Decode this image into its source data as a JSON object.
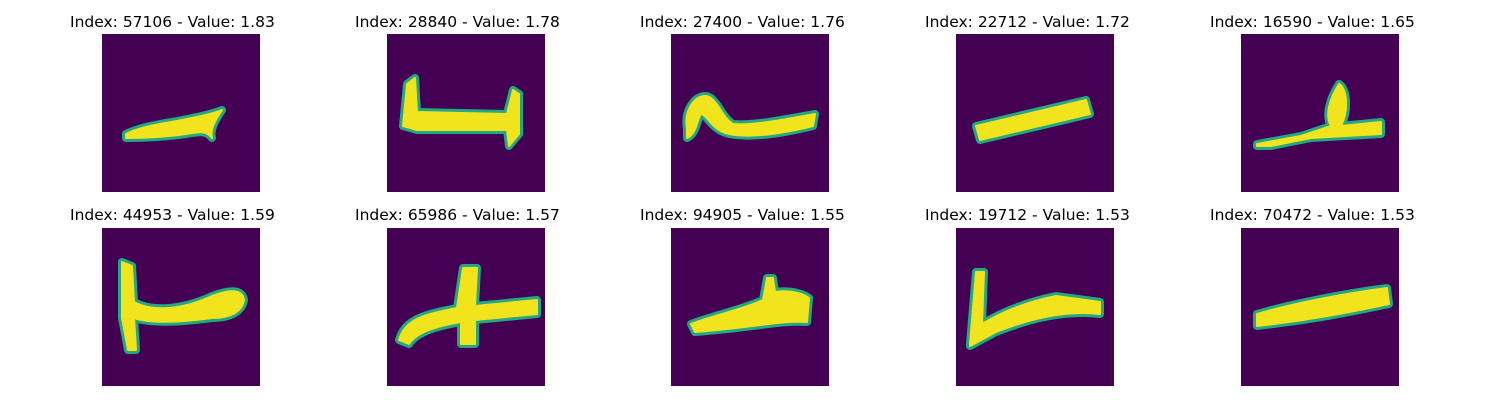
{
  "panels": [
    {
      "title": "Index: 57106 - Value: 1.83",
      "glyph": "glyph-1"
    },
    {
      "title": "Index: 28840 - Value: 1.78",
      "glyph": "glyph-2"
    },
    {
      "title": "Index: 27400 - Value: 1.76",
      "glyph": "glyph-3"
    },
    {
      "title": "Index: 22712 - Value: 1.72",
      "glyph": "glyph-4"
    },
    {
      "title": "Index: 16590 - Value: 1.65",
      "glyph": "glyph-5"
    },
    {
      "title": "Index: 44953 - Value: 1.59",
      "glyph": "glyph-6"
    },
    {
      "title": "Index: 65986 - Value: 1.57",
      "glyph": "glyph-7"
    },
    {
      "title": "Index: 94905 - Value: 1.55",
      "glyph": "glyph-8"
    },
    {
      "title": "Index: 19712 - Value: 1.53",
      "glyph": "glyph-9"
    },
    {
      "title": "Index: 70472 - Value: 1.53",
      "glyph": "glyph-10"
    }
  ],
  "colors": {
    "background": "#440154",
    "stroke_core": "#f2e41c",
    "stroke_edge": "#22a884"
  }
}
